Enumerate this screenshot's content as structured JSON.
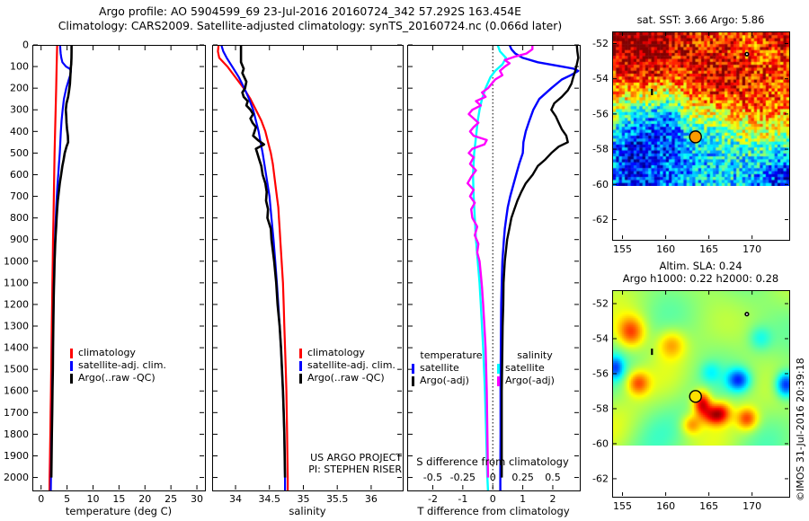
{
  "header": {
    "line1": "Argo profile: AO 5904599_69 23-Jul-2016 20160724_342 57.292S 163.454E",
    "line2": "Climatology: CARS2009. Satellite-adjusted climatology: synTS_20160724.nc (0.066d later)"
  },
  "watermark": "©IMOS 31-Jul-2016 20:39:18",
  "footer_text": {
    "project_line1": "US ARGO PROJECT",
    "project_line2": "PI: STEPHEN RISER"
  },
  "colors": {
    "climatology": "#ff0000",
    "satellite_adjusted": "#0000ff",
    "argo": "#000000",
    "salinity_satellite": "#00ffff",
    "salinity_argo": "#ff00ff"
  },
  "chart_data": [
    {
      "type": "line",
      "id": "temperature_profile",
      "xlabel": "temperature (deg C)",
      "xlim": [
        -1.68,
        31.55
      ],
      "ylim": [
        0,
        2060
      ],
      "xticks": [
        0,
        5,
        10,
        15,
        20,
        25,
        30
      ],
      "yticks": [
        0,
        100,
        200,
        300,
        400,
        500,
        600,
        700,
        800,
        900,
        1000,
        1100,
        1200,
        1300,
        1400,
        1500,
        1600,
        1700,
        1800,
        1900,
        2000
      ],
      "show_depth_labels": true,
      "legend": [
        {
          "label": "climatology",
          "color": "#ff0000"
        },
        {
          "label": "satellite-adj. clim.",
          "color": "#0000ff"
        },
        {
          "label": "Argo(..raw -QC)",
          "color": "#000000"
        }
      ],
      "series": [
        {
          "name": "climatology",
          "color": "#ff0000",
          "width": 2.2,
          "depths": [
            0,
            100,
            200,
            300,
            400,
            500,
            600,
            700,
            800,
            900,
            1000,
            1100,
            1200,
            1300,
            1400,
            1500,
            1600,
            1700,
            1800,
            1900,
            2000,
            2060
          ],
          "values": [
            3.1,
            3.0,
            2.9,
            2.8,
            2.7,
            2.6,
            2.52,
            2.45,
            2.38,
            2.3,
            2.25,
            2.18,
            2.12,
            2.06,
            2.0,
            1.95,
            1.9,
            1.84,
            1.78,
            1.72,
            1.65,
            1.62
          ]
        },
        {
          "name": "satellite-adj-clim",
          "color": "#0000ff",
          "width": 2.2,
          "depths": [
            0,
            20,
            40,
            60,
            80,
            100,
            110,
            120,
            140,
            160,
            200,
            250,
            300,
            350,
            400,
            450,
            500,
            550,
            600,
            650,
            700,
            750,
            800,
            850,
            900,
            1000,
            1100,
            1200,
            1300,
            1400,
            1500,
            1600,
            1700,
            1800,
            1900,
            2000,
            2060
          ],
          "values": [
            3.66,
            3.7,
            3.78,
            3.9,
            4.1,
            4.8,
            5.5,
            5.75,
            5.6,
            5.35,
            4.85,
            4.4,
            4.15,
            3.95,
            3.8,
            3.7,
            3.6,
            3.45,
            3.3,
            3.15,
            3.02,
            2.92,
            2.83,
            2.75,
            2.68,
            2.56,
            2.48,
            2.4,
            2.33,
            2.27,
            2.21,
            2.15,
            2.09,
            2.03,
            1.96,
            1.9,
            1.87
          ]
        },
        {
          "name": "argo-raw",
          "color": "#000000",
          "width": 2.6,
          "depths": [
            0,
            30,
            60,
            90,
            100,
            120,
            150,
            180,
            210,
            240,
            270,
            300,
            330,
            360,
            390,
            420,
            450,
            470,
            500,
            530,
            560,
            600,
            640,
            680,
            720,
            760,
            800,
            840,
            880,
            920,
            960,
            1000,
            1060,
            1120,
            1180,
            1240,
            1300,
            1400,
            1500,
            1600,
            1700,
            1800,
            1900,
            2000
          ],
          "values": [
            5.86,
            5.86,
            5.85,
            5.8,
            5.75,
            5.7,
            5.62,
            5.55,
            5.4,
            5.2,
            4.9,
            4.75,
            4.85,
            4.9,
            5.0,
            5.15,
            5.2,
            4.9,
            4.55,
            4.35,
            4.1,
            3.85,
            3.6,
            3.4,
            3.22,
            3.1,
            3.0,
            2.9,
            2.8,
            2.72,
            2.66,
            2.6,
            2.55,
            2.48,
            2.42,
            2.38,
            2.35,
            2.3,
            2.26,
            2.2,
            2.14,
            2.08,
            2.02,
            1.97
          ]
        }
      ]
    },
    {
      "type": "line",
      "id": "salinity_profile",
      "xlabel": "salinity",
      "xlim": [
        33.655,
        36.465
      ],
      "ylim": [
        0,
        2060
      ],
      "xticks": [
        34,
        34.5,
        35,
        35.5,
        36
      ],
      "yticks": [
        0,
        100,
        200,
        300,
        400,
        500,
        600,
        700,
        800,
        900,
        1000,
        1100,
        1200,
        1300,
        1400,
        1500,
        1600,
        1700,
        1800,
        1900,
        2000
      ],
      "show_depth_labels": false,
      "legend": [
        {
          "label": "climatology",
          "color": "#ff0000"
        },
        {
          "label": "satellite-adj. clim.",
          "color": "#0000ff"
        },
        {
          "label": "Argo(..raw -QC)",
          "color": "#000000"
        }
      ],
      "series": [
        {
          "name": "climatology",
          "color": "#ff0000",
          "width": 2.2,
          "depths": [
            0,
            30,
            60,
            100,
            150,
            200,
            250,
            300,
            350,
            400,
            450,
            500,
            550,
            600,
            650,
            700,
            750,
            800,
            850,
            900,
            1000,
            1100,
            1200,
            1300,
            1400,
            1500,
            1600,
            1700,
            1800,
            1900,
            2000,
            2060
          ],
          "values": [
            33.75,
            33.74,
            33.76,
            33.88,
            34.0,
            34.12,
            34.22,
            34.3,
            34.38,
            34.44,
            34.48,
            34.52,
            34.55,
            34.57,
            34.59,
            34.61,
            34.63,
            34.64,
            34.65,
            34.66,
            34.68,
            34.7,
            34.71,
            34.72,
            34.73,
            34.74,
            34.75,
            34.755,
            34.76,
            34.765,
            34.77,
            34.77
          ]
        },
        {
          "name": "satellite-adj-clim",
          "color": "#0000ff",
          "width": 2.2,
          "depths": [
            0,
            30,
            60,
            100,
            150,
            200,
            250,
            300,
            350,
            400,
            450,
            500,
            600,
            700,
            800,
            900,
            1000,
            1100,
            1200,
            1300,
            1400,
            1500,
            1600,
            1700,
            1800,
            1900,
            2000,
            2060
          ],
          "values": [
            33.79,
            33.82,
            33.87,
            33.95,
            34.05,
            34.13,
            34.2,
            34.26,
            34.3,
            34.34,
            34.37,
            34.4,
            34.45,
            34.5,
            34.53,
            34.56,
            34.585,
            34.61,
            34.63,
            34.65,
            34.67,
            34.685,
            34.7,
            34.71,
            34.72,
            34.725,
            34.73,
            34.73
          ]
        },
        {
          "name": "argo-raw",
          "color": "#000000",
          "width": 2.6,
          "depths": [
            0,
            40,
            80,
            95,
            110,
            130,
            150,
            170,
            200,
            220,
            240,
            260,
            280,
            300,
            320,
            340,
            360,
            380,
            400,
            420,
            440,
            460,
            480,
            500,
            530,
            560,
            600,
            640,
            680,
            720,
            760,
            800,
            850,
            900,
            950,
            1000,
            1100,
            1200,
            1300,
            1400,
            1500,
            1600,
            1700,
            1800,
            1900,
            2000
          ],
          "values": [
            34.08,
            34.08,
            34.08,
            34.1,
            34.12,
            34.1,
            34.13,
            34.16,
            34.14,
            34.1,
            34.12,
            34.18,
            34.16,
            34.22,
            34.26,
            34.22,
            34.25,
            34.3,
            34.28,
            34.26,
            34.33,
            34.42,
            34.3,
            34.32,
            34.35,
            34.38,
            34.4,
            34.44,
            34.46,
            34.45,
            34.48,
            34.47,
            34.52,
            34.53,
            34.55,
            34.57,
            34.6,
            34.62,
            34.65,
            34.67,
            34.685,
            34.7,
            34.71,
            34.72,
            34.725,
            34.73
          ]
        }
      ]
    },
    {
      "type": "line",
      "id": "difference_profile",
      "xlabel": "T difference from climatology",
      "inner_label": "S difference from climatology",
      "xlim": [
        -2.853,
        2.9
      ],
      "ylim": [
        0,
        2060
      ],
      "xticks": [
        -2,
        -1,
        0,
        1,
        2
      ],
      "yticks": [
        0,
        100,
        200,
        300,
        400,
        500,
        600,
        700,
        800,
        900,
        1000,
        1100,
        1200,
        1300,
        1400,
        1500,
        1600,
        1700,
        1800,
        1900,
        2000
      ],
      "show_depth_labels": false,
      "dotted_zero_line": true,
      "s_axis": {
        "ticks": [
          -0.5,
          -0.25,
          0,
          0.25,
          0.5
        ],
        "scale": 4
      },
      "legend_groups": [
        {
          "header": "temperature",
          "items": [
            {
              "label": "satellite",
              "color": "#0000ff"
            },
            {
              "label": "Argo(-adj)",
              "color": "#000000"
            }
          ]
        },
        {
          "header": "salinity",
          "items": [
            {
              "label": "satellite",
              "color": "#00ffff"
            },
            {
              "label": "Argo(-adj)",
              "color": "#ff00ff"
            }
          ]
        }
      ],
      "series": [
        {
          "name": "t-satellite-diff",
          "color": "#0000ff",
          "width": 2.4,
          "space": "T",
          "depths": [
            0,
            20,
            40,
            60,
            80,
            100,
            110,
            120,
            140,
            160,
            200,
            250,
            300,
            350,
            400,
            450,
            500,
            550,
            600,
            650,
            700,
            750,
            800,
            850,
            900,
            1000,
            1100,
            1200,
            1400,
            1600,
            1800,
            2000,
            2060
          ],
          "values": [
            0.56,
            0.62,
            0.75,
            1.0,
            1.5,
            2.3,
            2.7,
            2.85,
            2.6,
            2.3,
            1.95,
            1.55,
            1.35,
            1.22,
            1.1,
            1.02,
            1.0,
            0.88,
            0.78,
            0.68,
            0.58,
            0.5,
            0.45,
            0.4,
            0.37,
            0.32,
            0.3,
            0.28,
            0.27,
            0.26,
            0.26,
            0.25,
            0.25
          ]
        },
        {
          "name": "t-argo-diff",
          "color": "#000000",
          "width": 2.4,
          "space": "T",
          "depths": [
            0,
            30,
            60,
            90,
            120,
            150,
            180,
            210,
            240,
            270,
            300,
            330,
            360,
            390,
            420,
            450,
            470,
            500,
            530,
            560,
            600,
            640,
            680,
            720,
            760,
            800,
            850,
            900,
            950,
            1000,
            1100,
            1200,
            1300,
            1400,
            1600,
            1800,
            2000
          ],
          "values": [
            2.8,
            2.82,
            2.85,
            2.8,
            2.75,
            2.68,
            2.62,
            2.5,
            2.3,
            2.05,
            1.95,
            2.1,
            2.2,
            2.3,
            2.45,
            2.5,
            2.2,
            1.95,
            1.75,
            1.5,
            1.33,
            1.1,
            0.95,
            0.82,
            0.72,
            0.62,
            0.55,
            0.48,
            0.44,
            0.4,
            0.36,
            0.35,
            0.33,
            0.32,
            0.3,
            0.3,
            0.3
          ]
        },
        {
          "name": "s-satellite-diff",
          "color": "#00ffff",
          "width": 2.4,
          "space": "S",
          "depths": [
            0,
            30,
            60,
            90,
            120,
            150,
            200,
            250,
            300,
            350,
            400,
            450,
            500,
            600,
            700,
            800,
            900,
            1000,
            1100,
            1200,
            1400,
            1600,
            1800,
            2000,
            2060
          ],
          "values": [
            0.04,
            0.06,
            0.11,
            0.08,
            0.02,
            -0.02,
            -0.06,
            -0.09,
            -0.11,
            -0.125,
            -0.135,
            -0.145,
            -0.155,
            -0.165,
            -0.16,
            -0.15,
            -0.14,
            -0.125,
            -0.11,
            -0.1,
            -0.08,
            -0.065,
            -0.055,
            -0.045,
            -0.04
          ]
        },
        {
          "name": "s-argo-diff",
          "color": "#ff00ff",
          "width": 2.4,
          "space": "S",
          "depths": [
            0,
            20,
            40,
            55,
            70,
            85,
            100,
            120,
            140,
            160,
            180,
            200,
            220,
            240,
            260,
            280,
            300,
            320,
            340,
            360,
            380,
            400,
            420,
            440,
            460,
            480,
            500,
            520,
            550,
            580,
            610,
            640,
            670,
            700,
            730,
            760,
            800,
            840,
            880,
            920,
            960,
            1000,
            1060,
            1120,
            1200,
            1300,
            1400,
            1600,
            1800,
            2000
          ],
          "values": [
            0.33,
            0.33,
            0.28,
            0.18,
            0.1,
            0.14,
            0.1,
            0.06,
            0.08,
            0.02,
            -0.01,
            -0.04,
            -0.09,
            -0.06,
            -0.14,
            -0.1,
            -0.17,
            -0.2,
            -0.16,
            -0.12,
            -0.16,
            -0.19,
            -0.16,
            -0.05,
            -0.07,
            -0.17,
            -0.2,
            -0.16,
            -0.19,
            -0.14,
            -0.18,
            -0.21,
            -0.16,
            -0.19,
            -0.15,
            -0.18,
            -0.17,
            -0.13,
            -0.15,
            -0.12,
            -0.13,
            -0.11,
            -0.1,
            -0.09,
            -0.08,
            -0.07,
            -0.06,
            -0.05,
            -0.045,
            -0.04
          ]
        }
      ]
    },
    {
      "type": "heatmap",
      "id": "sst_map",
      "title": "sat. SST: 3.66 Argo: 5.86",
      "xticks": [
        155,
        160,
        165,
        170
      ],
      "yticks": [
        -52,
        -54,
        -56,
        -58,
        -60,
        -62
      ],
      "marker": {
        "lon": 163.45,
        "lat": -57.3,
        "fill": "#ff9a00"
      },
      "aux_dot": {
        "lon": 169.4,
        "lat": -52.6
      },
      "aux_dash": {
        "lon": 158.4,
        "lat": -54.75
      }
    },
    {
      "type": "heatmap",
      "id": "sla_map",
      "title_line1": "Altim. SLA: 0.24",
      "title_line2": "Argo h1000: 0.22 h2000: 0.28",
      "xticks": [
        155,
        160,
        165,
        170
      ],
      "yticks": [
        -52,
        -54,
        -56,
        -58,
        -60,
        -62
      ],
      "marker": {
        "lon": 163.45,
        "lat": -57.3,
        "fill": "#ffe000"
      },
      "aux_dot": {
        "lon": 169.4,
        "lat": -52.6
      },
      "aux_dash": {
        "lon": 158.4,
        "lat": -54.75
      }
    }
  ]
}
